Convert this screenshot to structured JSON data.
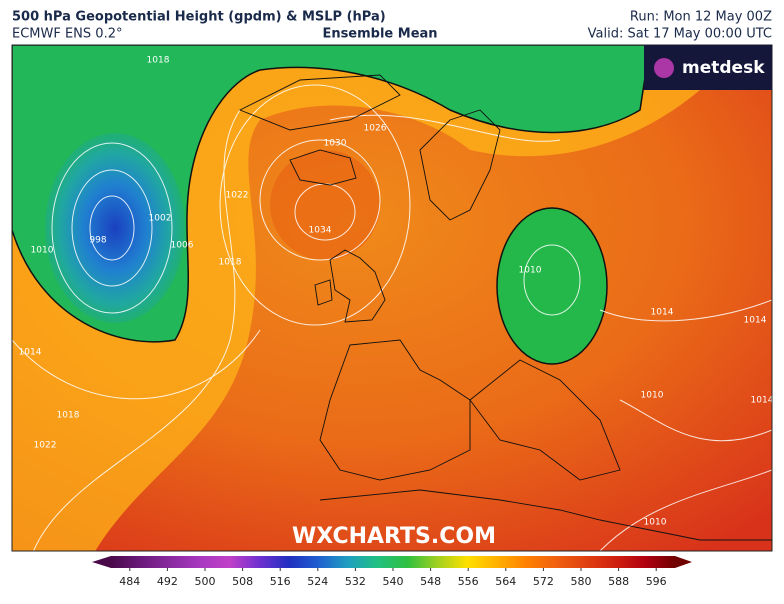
{
  "header": {
    "title": "500 hPa Geopotential Height (gpdm) & MSLP (hPa)",
    "model": "ECMWF ENS 0.2°",
    "product": "Ensemble Mean",
    "run": "Run: Mon 12 May 00Z",
    "valid": "Valid: Sat 17 May 00:00 UTC"
  },
  "logo": "metdesk",
  "watermark": "WXCHARTS.COM",
  "isobar_labels": [
    1018,
    1026,
    1030,
    1034,
    1022,
    1018,
    1002,
    1006,
    998,
    1010,
    1014,
    1018,
    1022,
    1010,
    1014,
    1010,
    1014,
    1010,
    1014
  ],
  "colorbar": {
    "lim": [
      480,
      600
    ],
    "ticks": [
      484,
      492,
      500,
      508,
      516,
      524,
      532,
      540,
      548,
      556,
      564,
      572,
      580,
      588,
      596
    ],
    "colors": [
      "#4a0a4a",
      "#6a1a7a",
      "#8a2aa0",
      "#a838c0",
      "#c040c8",
      "#7030d0",
      "#2030c0",
      "#2060d0",
      "#20a0c0",
      "#20c080",
      "#30c040",
      "#a0d020",
      "#ffe000",
      "#ffb000",
      "#ff8000",
      "#f06010",
      "#e04010",
      "#d02010",
      "#b00010",
      "#700000"
    ]
  }
}
